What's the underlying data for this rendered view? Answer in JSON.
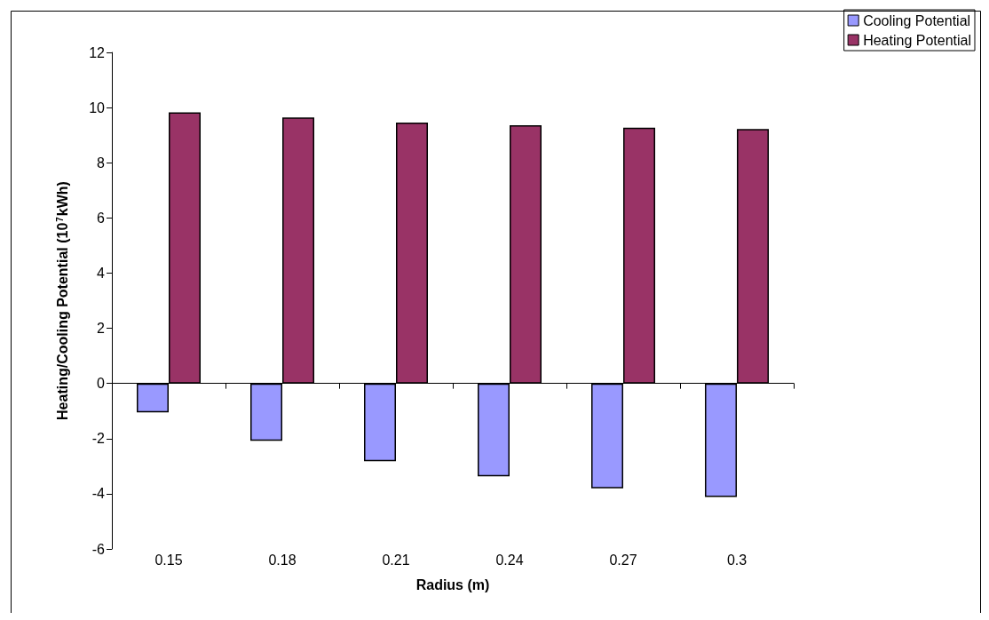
{
  "chart_data": {
    "type": "bar",
    "xlabel": "Radius (m)",
    "ylabel": "Heating/Cooling Potential (10$^{7}$kWh)",
    "categories": [
      "0.15",
      "0.18",
      "0.21",
      "0.24",
      "0.27",
      "0.3"
    ],
    "series": [
      {
        "name": "Cooling Potential",
        "color": "#9999ff",
        "values": [
          -1.05,
          -2.08,
          -2.82,
          -3.37,
          -3.8,
          -4.12
        ]
      },
      {
        "name": "Heating Potential",
        "color": "#993366",
        "values": [
          9.83,
          9.64,
          9.46,
          9.36,
          9.27,
          9.22
        ]
      }
    ],
    "ylim": [
      -6,
      12
    ],
    "yticks": [
      -6,
      -4,
      -2,
      0,
      2,
      4,
      6,
      8,
      10,
      12
    ],
    "legend": "top right"
  }
}
